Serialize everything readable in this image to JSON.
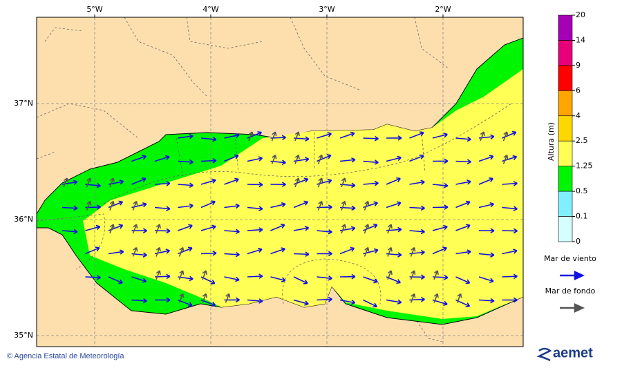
{
  "map": {
    "lon_labels": [
      "5°W",
      "4°W",
      "3°W",
      "2°W"
    ],
    "lat_labels": [
      "37°N",
      "36°N",
      "35°N"
    ]
  },
  "colorbar": {
    "title": "Altura (m)",
    "levels": [
      20,
      14,
      9,
      6,
      4,
      2.5,
      1.25,
      0.5,
      0.1,
      0
    ],
    "colors": [
      "#a500b5",
      "#e8007a",
      "#ff0000",
      "#ffa500",
      "#ffd700",
      "#ffff55",
      "#00f500",
      "#80f0ff",
      "#d5ffff"
    ]
  },
  "legend": {
    "items": [
      {
        "label": "Mar de viento",
        "color": "#1010e0"
      },
      {
        "label": "Mar de fondo",
        "color": "#555555"
      }
    ]
  },
  "footer": {
    "credit": "© Agencia Estatal de Meteorología",
    "logo": "aemet"
  }
}
